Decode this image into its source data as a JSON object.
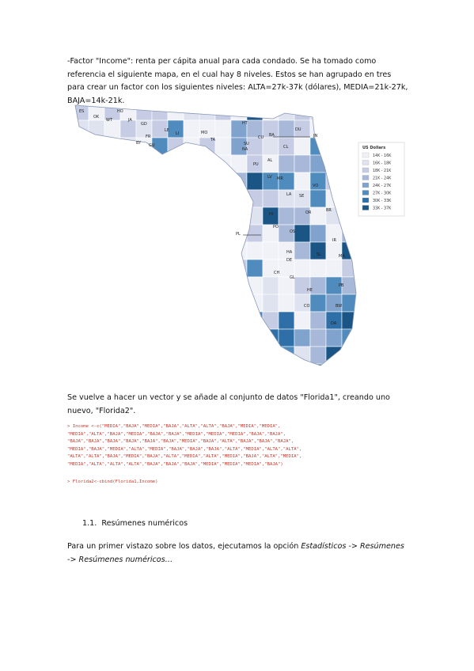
{
  "paragraphs": {
    "factor_income": "-Factor \"Income\": renta per cápita anual para cada condado. Se ha tomado como referencia el siguiente mapa, en el cual hay 8 niveles. Estos se han agrupado en tres para crear un factor con los siguientes niveles: ALTA=27k-37k (dólares), MEDIA=21k-27k, BAJA=14k-21k.",
    "vector": "Se vuelve a hacer un vector y se añade al conjunto de datos \"Florida1\", creando uno nuevo, \"Florida2\"."
  },
  "map": {
    "legend_title": "US Dollars",
    "legend": [
      {
        "label": "14K - 16K",
        "color": "#f1f2f8"
      },
      {
        "label": "16K - 18K",
        "color": "#dfe2ef"
      },
      {
        "label": "18K - 21K",
        "color": "#c5cce3"
      },
      {
        "label": "21K - 24K",
        "color": "#a7b8d8"
      },
      {
        "label": "24K - 27K",
        "color": "#7fa3cc"
      },
      {
        "label": "27K - 30K",
        "color": "#4f8bbd"
      },
      {
        "label": "30K - 33K",
        "color": "#2d6fa6"
      },
      {
        "label": "33K - 37K",
        "color": "#1a5585"
      }
    ],
    "labels": [
      "ES",
      "OK",
      "WT",
      "HO",
      "JA",
      "GD",
      "LE",
      "LI",
      "FR",
      "GU",
      "BY",
      "MO",
      "TA",
      "HT",
      "CU",
      "SU",
      "BA",
      "NA",
      "DU",
      "CL",
      "AL",
      "PU",
      "LV",
      "MR",
      "VO",
      "LA",
      "SE",
      "OR",
      "BR",
      "HI",
      "PO",
      "OS",
      "IR",
      "HA",
      "DE",
      "SL",
      "MA",
      "GL",
      "HE",
      "PB",
      "CH",
      "BW",
      "CO",
      "DA",
      "JN",
      "PL"
    ]
  },
  "code": {
    "lines": [
      "> Income <-c(\"MEDIA\",\"BAJA\",\"MEDIA\",\"BAJA\",\"ALTA\",\"ALTA\",\"BAJA\",\"MEDIA\",\"MEDIA\",",
      "\"MEDIA\",\"ALTA\",\"BAJA\",\"MEDIA\",\"BAJA\",\"BAJA\",\"MEDIA\",\"MEDIA\",\"MEDIA\",\"BAJA\",\"BAJA\",",
      "\"BAJA\",\"BAJA\",\"BAJA\",\"BAJA\",\"BAJA\",\"BAJA\",\"MEDIA\",\"BAJA\",\"ALTA\",\"BAJA\",\"BAJA\",\"BAJA\",",
      "\"MEDIA\",\"BAJA\",\"MEDIA\",\"ALTA\",\"MEDIA\",\"BAJA\",\"BAJA\",\"BAJA\",\"ALTA\",\"MEDIA\",\"ALTA\",\"ALTA\",",
      "\"ALTA\",\"ALTA\",\"BAJA\",\"MEDIA\",\"BAJA\",\"ALTA\",\"MEDIA\",\"ALTA\",\"MEDIA\",\"BAJA\",\"ALTA\",\"MEDIA\",",
      "\"MEDIA\",\"ALTA\",\"ALTA\",\"ALTA\",\"BAJA\",\"BAJA\",\"BAJA\",\"MEDIA\",\"MEDIA\",\"MEDIA\",\"BAJA\")"
    ],
    "cbind": "> Florida2<-cbind(Florida1,Income)"
  },
  "section": {
    "number": "1.1.",
    "title": "Resúmenes numéricos"
  },
  "summary": [
    {
      "text": "Para un primer vistazo sobre los datos, ejecutamos la opción ",
      "italic": false
    },
    {
      "text": "Estadísticos -> Resúmenes -> Resúmenes numéricos…",
      "italic": true
    }
  ]
}
